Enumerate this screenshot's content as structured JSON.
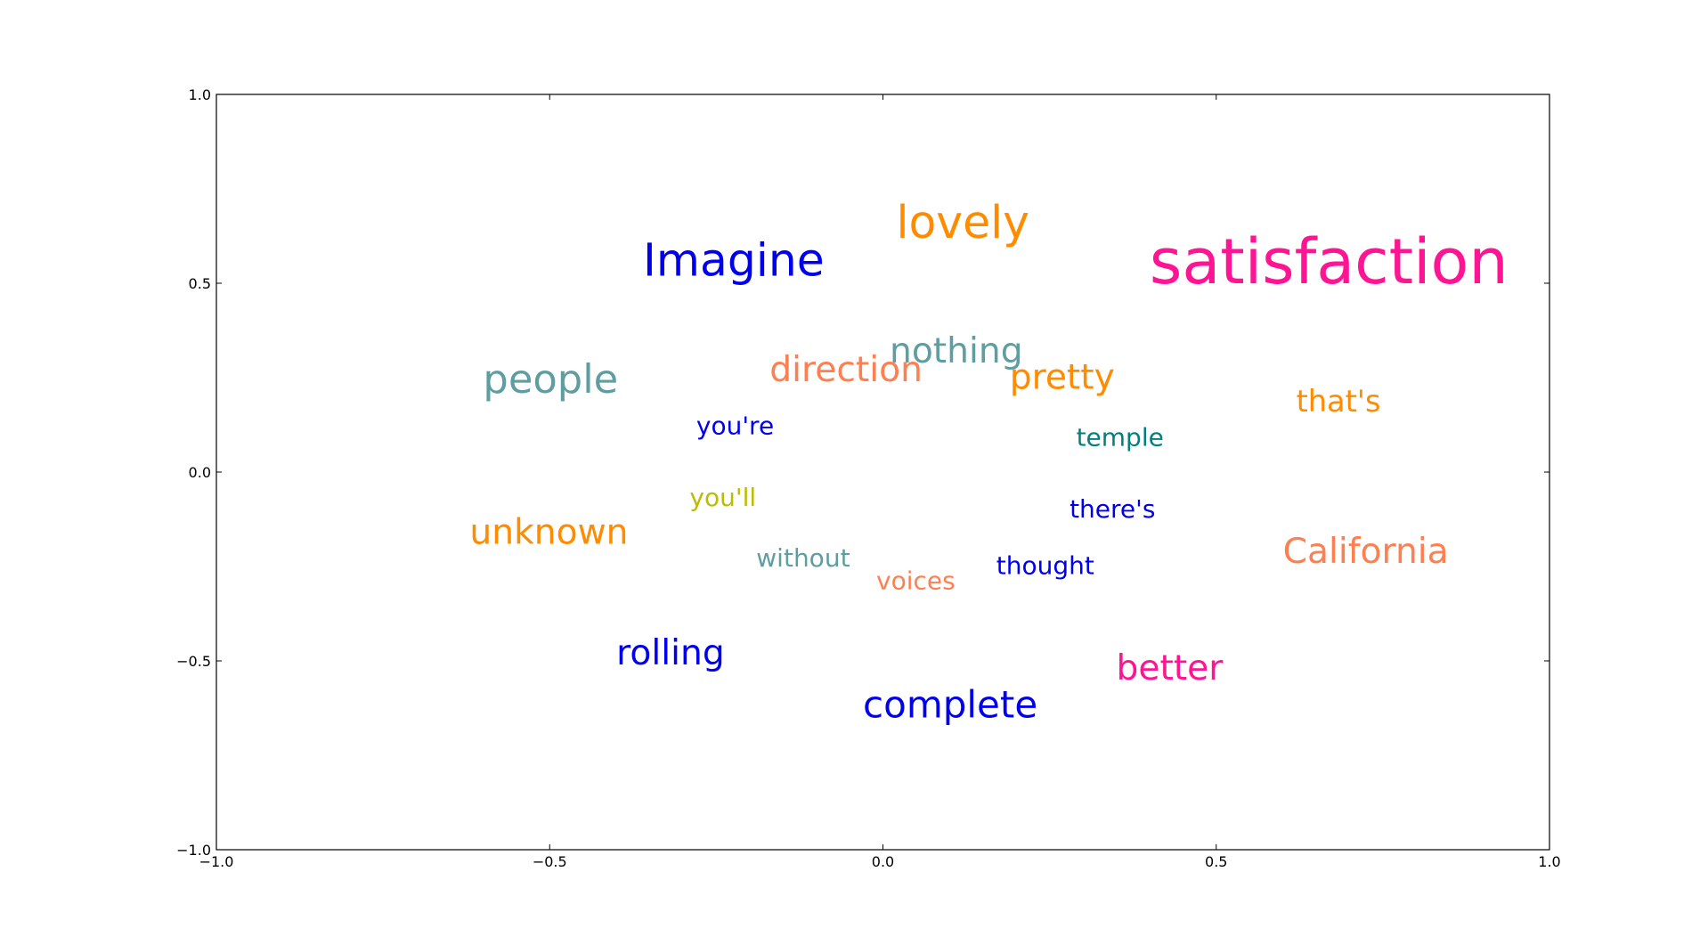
{
  "chart_data": {
    "type": "scatter",
    "title": "",
    "xlabel": "",
    "ylabel": "",
    "xlim": [
      -1.0,
      1.0
    ],
    "ylim": [
      -1.0,
      1.0
    ],
    "grid": false,
    "xticks": [
      -1.0,
      -0.5,
      0.0,
      0.5,
      1.0
    ],
    "yticks": [
      -1.0,
      -0.5,
      0.0,
      0.5,
      1.0
    ],
    "xtick_labels": [
      "−1.0",
      "−0.5",
      "0.0",
      "0.5",
      "1.0"
    ],
    "ytick_labels": [
      "−1.0",
      "−0.5",
      "0.0",
      "0.5",
      "1.0"
    ],
    "points": [
      {
        "text": "satisfaction",
        "x": 0.4,
        "y": 0.5,
        "weight": 5.0,
        "color": "#ff1493"
      },
      {
        "text": "lovely",
        "x": 0.02,
        "y": 0.62,
        "weight": 3.6,
        "color": "#ff8c00"
      },
      {
        "text": "Imagine",
        "x": -0.36,
        "y": 0.52,
        "weight": 3.6,
        "color": "#0000ee"
      },
      {
        "text": "people",
        "x": -0.6,
        "y": 0.21,
        "weight": 3.2,
        "color": "#5f9ea0"
      },
      {
        "text": "nothing",
        "x": 0.01,
        "y": 0.29,
        "weight": 2.8,
        "color": "#5f9ea0"
      },
      {
        "text": "direction",
        "x": -0.17,
        "y": 0.24,
        "weight": 2.8,
        "color": "#ff7f50"
      },
      {
        "text": "pretty",
        "x": 0.19,
        "y": 0.22,
        "weight": 2.8,
        "color": "#ff8c00"
      },
      {
        "text": "that's",
        "x": 0.62,
        "y": 0.16,
        "weight": 2.4,
        "color": "#ff8c00"
      },
      {
        "text": "you're",
        "x": -0.28,
        "y": 0.1,
        "weight": 2.0,
        "color": "#0000ee"
      },
      {
        "text": "temple",
        "x": 0.29,
        "y": 0.07,
        "weight": 2.0,
        "color": "#008080"
      },
      {
        "text": "you'll",
        "x": -0.29,
        "y": -0.09,
        "weight": 2.0,
        "color": "#bcbd00"
      },
      {
        "text": "there's",
        "x": 0.28,
        "y": -0.12,
        "weight": 2.0,
        "color": "#0000ee"
      },
      {
        "text": "unknown",
        "x": -0.62,
        "y": -0.19,
        "weight": 2.8,
        "color": "#ff8c00"
      },
      {
        "text": "California",
        "x": 0.6,
        "y": -0.24,
        "weight": 2.8,
        "color": "#ff7f50"
      },
      {
        "text": "without",
        "x": -0.19,
        "y": -0.25,
        "weight": 2.0,
        "color": "#5f9ea0"
      },
      {
        "text": "thought",
        "x": 0.17,
        "y": -0.27,
        "weight": 2.0,
        "color": "#0000ee"
      },
      {
        "text": "voices",
        "x": -0.01,
        "y": -0.31,
        "weight": 2.0,
        "color": "#ff7f50"
      },
      {
        "text": "rolling",
        "x": -0.4,
        "y": -0.51,
        "weight": 2.8,
        "color": "#0000ee"
      },
      {
        "text": "better",
        "x": 0.35,
        "y": -0.55,
        "weight": 2.8,
        "color": "#ff1493"
      },
      {
        "text": "complete",
        "x": -0.03,
        "y": -0.65,
        "weight": 3.0,
        "color": "#0000ee"
      }
    ]
  }
}
